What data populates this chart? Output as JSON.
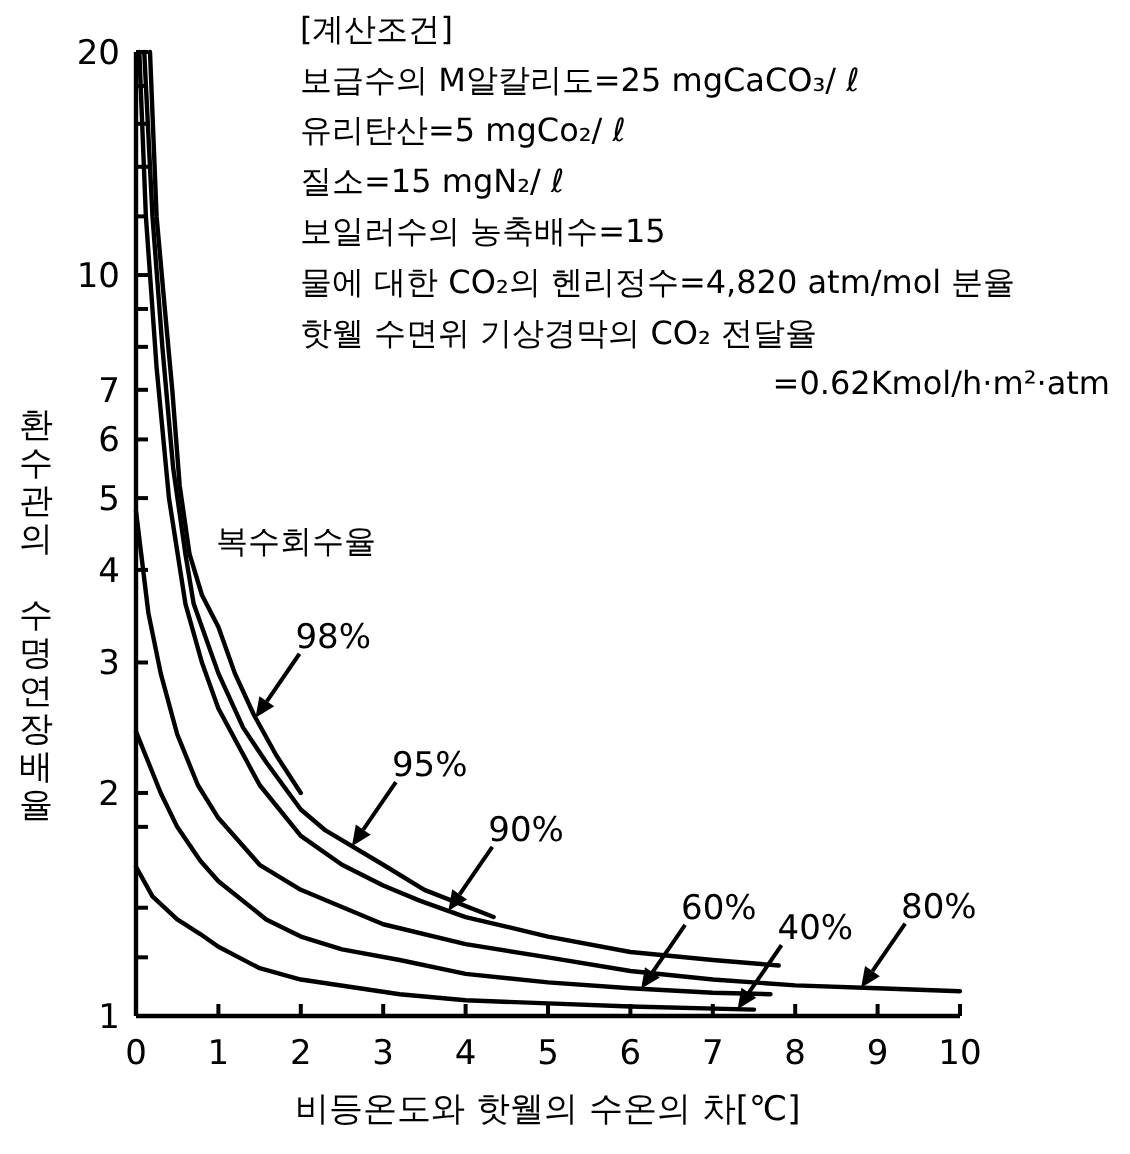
{
  "chart_data": {
    "type": "line",
    "xlabel": "비등온도와 핫웰의 수온의 차[℃]",
    "ylabel": "환수관의 수명연장배율",
    "legend_title": "복수회수율",
    "log": true,
    "xlim": [
      0,
      10
    ],
    "ylim": [
      1,
      20
    ],
    "xticks": [
      0,
      1,
      2,
      3,
      4,
      5,
      6,
      7,
      8,
      9,
      10
    ],
    "yticks": [
      1,
      {
        "value": 1.2,
        "label": null
      },
      {
        "value": 1.4,
        "label": null
      },
      {
        "value": 1.8,
        "label": null
      },
      2,
      3,
      4,
      5,
      6,
      7,
      {
        "value": 8,
        "label": null
      },
      {
        "value": 9,
        "label": null
      },
      10,
      {
        "value": 12,
        "label": null
      },
      {
        "value": 14,
        "label": null
      },
      {
        "value": 16,
        "label": null
      },
      {
        "value": 18,
        "label": null
      },
      20
    ],
    "series": [
      {
        "name": "98%",
        "color": "#000000",
        "x": [
          0.17,
          0.25,
          0.35,
          0.44,
          0.53,
          0.65,
          0.8,
          1.0,
          1.2,
          1.43,
          1.7,
          2.0
        ],
        "values": [
          20,
          12,
          9,
          7,
          5.2,
          4.2,
          3.7,
          3.35,
          2.9,
          2.55,
          2.25,
          2.0
        ]
      },
      {
        "name": "95%",
        "color": "#000000",
        "x": [
          0.1,
          0.2,
          0.32,
          0.45,
          0.6,
          0.7,
          1.0,
          1.3,
          1.58,
          2.0,
          2.3,
          3.0,
          3.5,
          4.34
        ],
        "values": [
          20,
          12,
          8,
          5.5,
          4.2,
          3.6,
          2.9,
          2.45,
          2.2,
          1.9,
          1.78,
          1.6,
          1.48,
          1.36
        ]
      },
      {
        "name": "90%",
        "color": "#000000",
        "x": [
          0.04,
          0.12,
          0.25,
          0.4,
          0.6,
          0.8,
          1.0,
          1.5,
          2.0,
          2.5,
          3.0,
          3.45,
          4.0,
          5.0,
          6.0,
          7.0,
          7.8
        ],
        "values": [
          20,
          12,
          7.5,
          5,
          3.6,
          3.0,
          2.6,
          2.05,
          1.75,
          1.6,
          1.5,
          1.43,
          1.36,
          1.28,
          1.22,
          1.19,
          1.17
        ]
      },
      {
        "name": "80%",
        "color": "#000000",
        "x": [
          0,
          0.15,
          0.3,
          0.5,
          0.75,
          1.0,
          1.5,
          2.0,
          3.0,
          4.0,
          5.0,
          6.0,
          7.0,
          8.0,
          9.0,
          10.0
        ],
        "values": [
          4.8,
          3.5,
          2.9,
          2.4,
          2.05,
          1.85,
          1.6,
          1.48,
          1.33,
          1.25,
          1.2,
          1.15,
          1.12,
          1.1,
          1.09,
          1.08
        ]
      },
      {
        "name": "60%",
        "color": "#000000",
        "x": [
          0,
          0.15,
          0.3,
          0.5,
          0.78,
          1.0,
          1.58,
          2.0,
          2.5,
          3.2,
          4.0,
          5.0,
          6.0,
          7.0,
          7.7
        ],
        "values": [
          2.42,
          2.2,
          2.0,
          1.8,
          1.62,
          1.52,
          1.35,
          1.28,
          1.23,
          1.19,
          1.14,
          1.11,
          1.09,
          1.075,
          1.07
        ]
      },
      {
        "name": "40%",
        "color": "#000000",
        "x": [
          0,
          0.2,
          0.5,
          0.78,
          1.0,
          1.5,
          2.0,
          3.2,
          4.0,
          5.0,
          6.0,
          7.5
        ],
        "values": [
          1.59,
          1.45,
          1.35,
          1.29,
          1.24,
          1.16,
          1.12,
          1.07,
          1.05,
          1.04,
          1.03,
          1.02
        ]
      }
    ],
    "annotations": [
      "[계산조건]",
      "보급수의 M알칼리도=25 mgCaCO₃/ ℓ",
      "유리탄산=5 mgCo₂/ ℓ",
      "질소=15 mgN₂/ ℓ",
      "보일러수의 농축배수=15",
      "물에 대한 CO₂의 헨리정수=4,820 atm/mol 분율",
      "핫웰 수면위 기상경막의 CO₂ 전달율",
      "=0.62Kmol/h·m²·atm"
    ]
  }
}
